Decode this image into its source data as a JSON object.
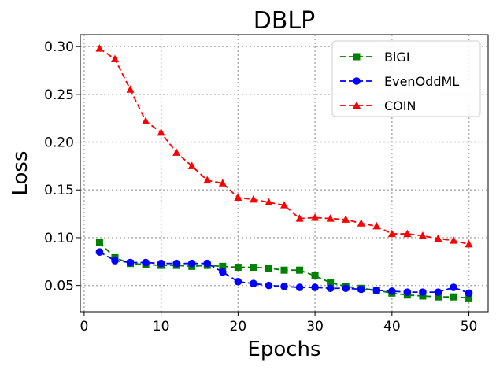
{
  "chart_data": {
    "type": "line",
    "title": "DBLP",
    "xlabel": "Epochs",
    "ylabel": "Loss",
    "xlim": [
      -0.5,
      52.5
    ],
    "ylim": [
      0.0225,
      0.3125
    ],
    "xticks": [
      0,
      10,
      20,
      30,
      40,
      50
    ],
    "yticks": [
      0.05,
      0.1,
      0.15,
      0.2,
      0.25,
      0.3
    ],
    "xtick_labels": [
      "0",
      "10",
      "20",
      "30",
      "40",
      "50"
    ],
    "ytick_labels": [
      "0.05",
      "0.10",
      "0.15",
      "0.20",
      "0.25",
      "0.30"
    ],
    "grid": true,
    "legend_position": "top-right",
    "x": [
      2,
      4,
      6,
      8,
      10,
      12,
      14,
      16,
      18,
      20,
      22,
      24,
      26,
      28,
      30,
      32,
      34,
      36,
      38,
      40,
      42,
      44,
      46,
      48,
      50
    ],
    "series": [
      {
        "name": "BiGI",
        "color": "#008000",
        "marker": "square",
        "values": [
          0.095,
          0.079,
          0.073,
          0.072,
          0.071,
          0.071,
          0.07,
          0.071,
          0.07,
          0.069,
          0.069,
          0.068,
          0.066,
          0.066,
          0.06,
          0.053,
          0.049,
          0.047,
          0.045,
          0.042,
          0.04,
          0.039,
          0.038,
          0.038,
          0.037
        ]
      },
      {
        "name": "EvenOddML",
        "color": "#0000ff",
        "marker": "circle",
        "values": [
          0.085,
          0.076,
          0.074,
          0.074,
          0.073,
          0.073,
          0.073,
          0.073,
          0.064,
          0.054,
          0.052,
          0.05,
          0.049,
          0.048,
          0.048,
          0.047,
          0.047,
          0.046,
          0.045,
          0.044,
          0.043,
          0.043,
          0.043,
          0.048,
          0.042
        ]
      },
      {
        "name": "COIN",
        "color": "#ff0000",
        "marker": "triangle",
        "values": [
          0.298,
          0.287,
          0.255,
          0.222,
          0.21,
          0.189,
          0.175,
          0.16,
          0.157,
          0.142,
          0.14,
          0.137,
          0.134,
          0.12,
          0.121,
          0.12,
          0.119,
          0.115,
          0.112,
          0.104,
          0.104,
          0.102,
          0.099,
          0.097,
          0.093
        ]
      }
    ]
  }
}
